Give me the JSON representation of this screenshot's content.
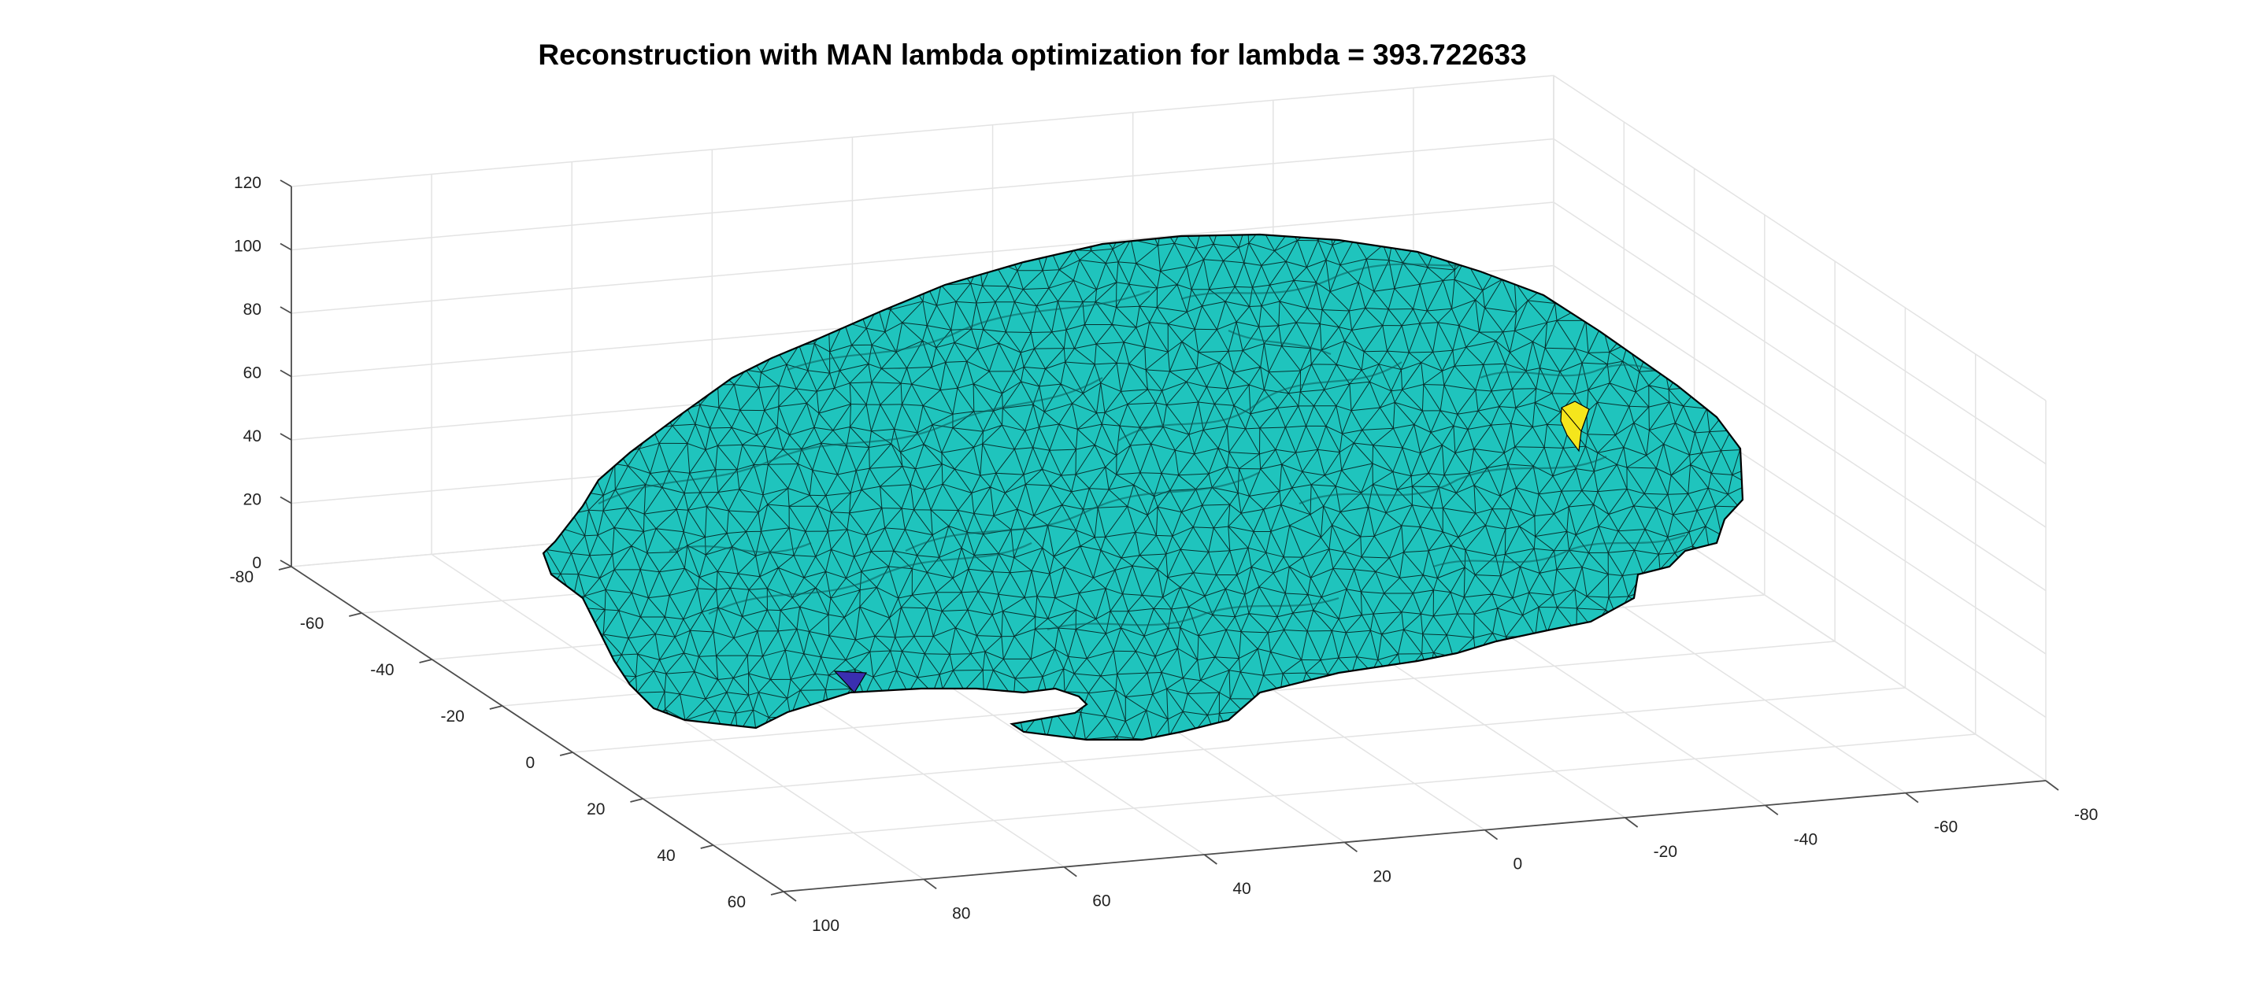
{
  "chart_data": {
    "type": "surface",
    "title": "Reconstruction with MAN lambda optimization for lambda = 393.722633",
    "xlabel": "",
    "ylabel": "",
    "zlabel": "",
    "x_ticks": [
      "100",
      "80",
      "60",
      "40",
      "20",
      "0",
      "-20",
      "-40",
      "-60",
      "-80"
    ],
    "y_ticks": [
      "-80",
      "-60",
      "-40",
      "-20",
      "0",
      "20",
      "40",
      "60"
    ],
    "z_ticks": [
      "0",
      "20",
      "40",
      "60",
      "80",
      "100",
      "120"
    ],
    "xlim": [
      -80,
      100
    ],
    "ylim": [
      -80,
      60
    ],
    "zlim": [
      0,
      120
    ],
    "grid": true,
    "surface_color": "#1fc4bd",
    "edge_color": "#000000",
    "highlights": [
      {
        "name": "yellow-patch",
        "color": "#f5e61c"
      },
      {
        "name": "blue-patch",
        "color": "#3a2fb0"
      }
    ]
  }
}
